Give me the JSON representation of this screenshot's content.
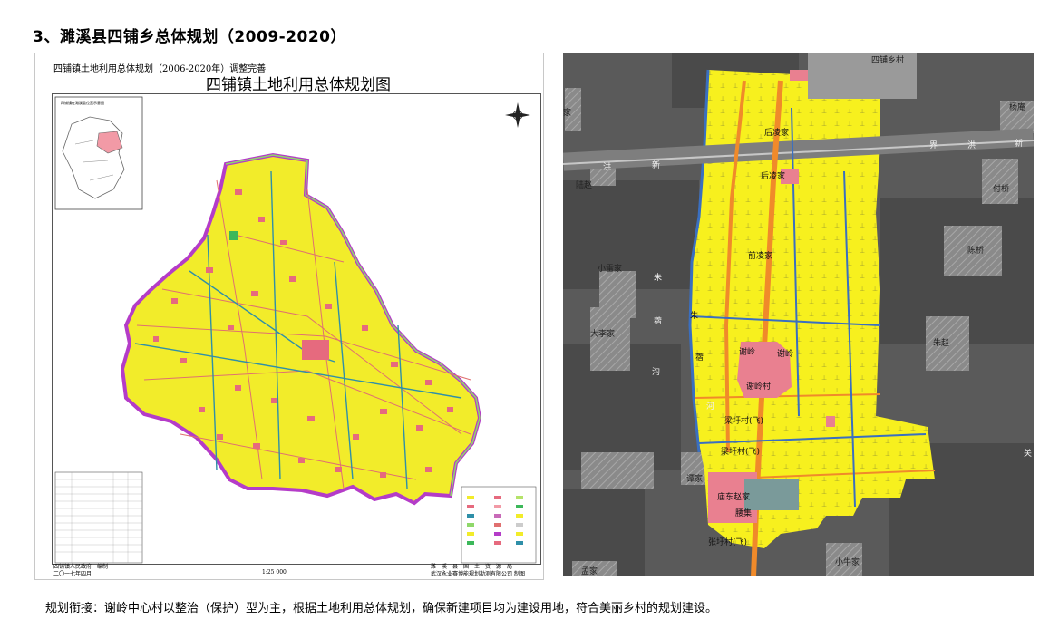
{
  "heading": "3、濉溪县四铺乡总体规划（2009-2020）",
  "left_map": {
    "subtitle": "四铺镇土地利用总体规划（2006-2020年）调整完善",
    "title": "四铺镇土地利用总体规划图",
    "inset_title": "四铺镇在濉溪县位置示意图",
    "compiler": "四铺镇人民政府　编制",
    "date": "二〇一七年四月",
    "scale": "1:25 000",
    "approver": "濉　溪　县　国　土　资　源　局",
    "maker": "武汉永业赛博能规划勘测有限公司",
    "made": "制图"
  },
  "right_map": {
    "labels": {
      "sipu": "四铺乡村",
      "yanghe": "杨庵",
      "jia1": "家",
      "houling_jia1": "后凌家",
      "houling_jia2": "后凌家",
      "jie": "界",
      "hong1": "洪",
      "xin1": "新",
      "hong2": "洪",
      "xin2": "新",
      "lu_zhao": "陆赵",
      "fu_qiao": "付桥",
      "chen_qiao": "陈桥",
      "xiao_lei": "小雷家",
      "qianling": "前凌家",
      "zhu1": "朱",
      "zhu2": "朱",
      "xi1": "蓿",
      "xi2": "蓿",
      "gou": "沟",
      "da_li": "大李家",
      "zhu_zhao": "朱赵",
      "xieling1": "谢岭",
      "xieling2": "谢岭",
      "xieling_cun": "谢岭村",
      "he": "河",
      "zhuqian1": "梁圩村(飞)",
      "zhuqian2": "梁圩村(飞)",
      "tan": "谭家",
      "miaodong": "庙东赵家",
      "xieji": "腰集",
      "zhuqian3": "张圩村(飞)",
      "meng": "孟家",
      "xiaoniu": "小牛家",
      "guan": "关"
    }
  },
  "caption": "规划衔接：谢岭中心村以整治（保护）型为主，根据土地利用总体规划，确保新建项目均为建设用地，符合美丽乡村的规划建设。"
}
